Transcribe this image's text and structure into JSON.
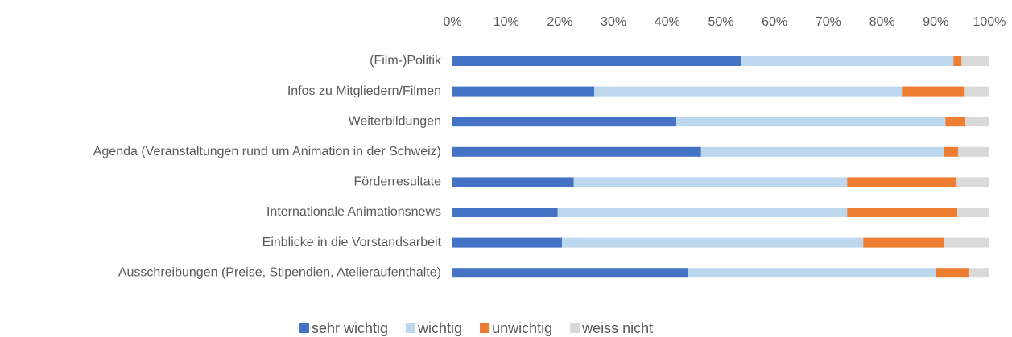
{
  "chart_data": {
    "type": "stacked_barh",
    "categories": [
      "(Film-)Politik",
      "Infos zu Mitgliedern/Filmen",
      "Weiterbildungen",
      "Agenda (Veranstaltungen rund um Animation in der Schweiz)",
      "Förderresultate",
      "Internationale Animationsnews",
      "Einblicke in die Vorstandsarbeit",
      "Ausschreibungen (Preise, Stipendien, Atelieraufenthalte)"
    ],
    "series": [
      {
        "name": "sehr wichtig",
        "color": "#4472c4",
        "values": [
          53.7,
          26.4,
          41.7,
          46.3,
          22.6,
          19.6,
          20.4,
          43.9
        ]
      },
      {
        "name": "wichtig",
        "color": "#bdd7ee",
        "values": [
          39.6,
          57.3,
          50.1,
          45.2,
          50.9,
          53.9,
          56.1,
          46.2
        ]
      },
      {
        "name": "unwichtig",
        "color": "#ed7d31",
        "values": [
          1.5,
          11.7,
          3.7,
          2.7,
          20.4,
          20.5,
          15.1,
          6.0
        ]
      },
      {
        "name": "weiss nicht",
        "color": "#d9d9d9",
        "values": [
          5.2,
          4.6,
          4.5,
          5.8,
          6.1,
          6.0,
          8.4,
          3.9
        ]
      }
    ],
    "xlim": [
      0,
      100
    ],
    "xticks": [
      {
        "value": 0,
        "label": "0%"
      },
      {
        "value": 10,
        "label": "10%"
      },
      {
        "value": 20,
        "label": "20%"
      },
      {
        "value": 30,
        "label": "30%"
      },
      {
        "value": 40,
        "label": "40%"
      },
      {
        "value": 50,
        "label": "50%"
      },
      {
        "value": 60,
        "label": "60%"
      },
      {
        "value": 70,
        "label": "70%"
      },
      {
        "value": 80,
        "label": "80%"
      },
      {
        "value": 90,
        "label": "90%"
      },
      {
        "value": 100,
        "label": "100%"
      }
    ],
    "legend": "bottom"
  }
}
